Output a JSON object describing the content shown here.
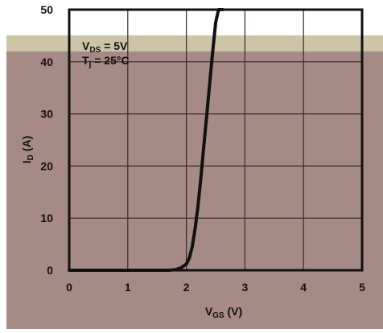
{
  "chart_data": {
    "type": "line",
    "xlabel": {
      "main": "V",
      "sub": "GS",
      "unit": " (V)"
    },
    "ylabel": {
      "main": "I",
      "sub": "D",
      "unit": " (A)"
    },
    "xlim": [
      0,
      5
    ],
    "ylim": [
      0,
      50
    ],
    "x_ticks": [
      0,
      1,
      2,
      3,
      4,
      5
    ],
    "y_ticks": [
      0,
      10,
      20,
      30,
      40,
      50
    ],
    "grid": true,
    "annotations": [
      {
        "main": "V",
        "sub": "DS",
        "rest": " = 5V"
      },
      {
        "main": "T",
        "sub": "j",
        "rest": " = 25°C"
      }
    ],
    "series": [
      {
        "color": "#111111",
        "x": [
          0,
          1.7,
          1.8,
          1.9,
          2.0,
          2.05,
          2.1,
          2.15,
          2.2,
          2.25,
          2.3,
          2.35,
          2.4,
          2.45,
          2.5,
          2.55,
          2.62
        ],
        "y": [
          0,
          0,
          0.1,
          0.4,
          1.2,
          2.3,
          4.5,
          8,
          12.5,
          18,
          24,
          30,
          36,
          42,
          47.5,
          50,
          50
        ]
      }
    ]
  },
  "colors": {
    "plot_background": "#a58a86",
    "band": "#cdc3a5",
    "grid": "#3a2a28",
    "axis": "#111111",
    "top_background": "#ffffff"
  }
}
